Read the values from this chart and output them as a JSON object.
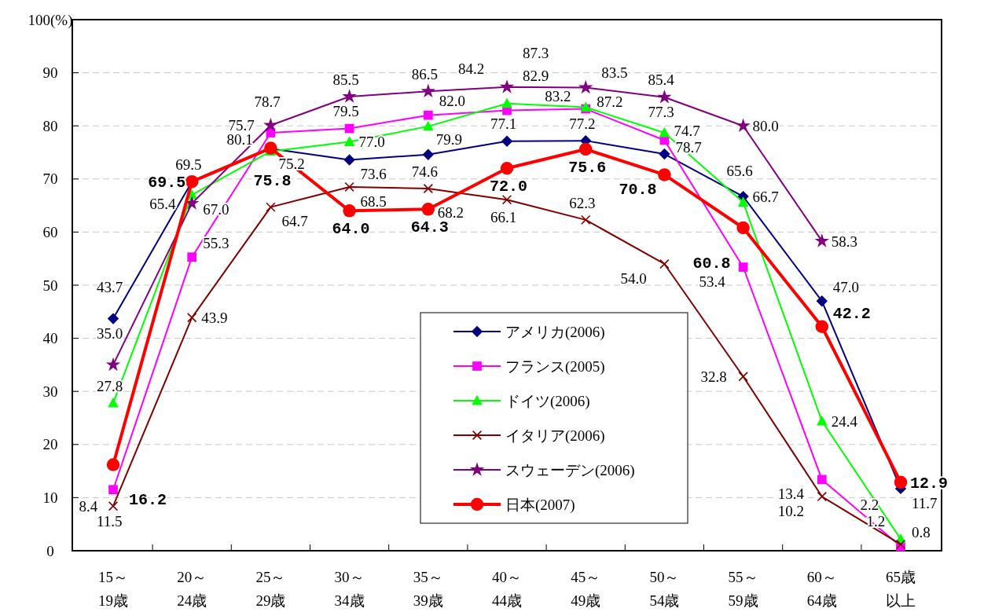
{
  "chart_data": {
    "type": "line",
    "categories": [
      "15～19歳",
      "20～24歳",
      "25～29歳",
      "30～34歳",
      "35～39歳",
      "40～44歳",
      "45～49歳",
      "50～54歳",
      "55～59歳",
      "60～64歳",
      "65歳以上"
    ],
    "ylim": [
      0,
      100
    ],
    "yticks": [
      0,
      10,
      20,
      30,
      40,
      50,
      60,
      70,
      80,
      90,
      {
        "value": 100,
        "label": "100(%)"
      }
    ],
    "grid": "y",
    "legend": "bottom",
    "series": [
      {
        "name": "アメリカ(2006)",
        "color": "#000080",
        "marker": "diamond",
        "values": [
          43.7,
          69.5,
          75.7,
          73.6,
          74.6,
          77.1,
          77.2,
          74.7,
          66.7,
          47.0,
          11.7
        ],
        "value_labels": [
          "43.7",
          "69.5",
          "75.7",
          "73.6",
          "74.6",
          "77.1",
          "77.2",
          "74.7",
          "66.7",
          "47.0",
          "11.7"
        ]
      },
      {
        "name": "フランス(2005)",
        "color": "#ff00ff",
        "marker": "square",
        "values": [
          11.5,
          55.3,
          78.7,
          79.5,
          82.0,
          82.9,
          83.2,
          77.3,
          53.4,
          13.4,
          0.8
        ],
        "value_labels": [
          "11.5",
          "55.3",
          "78.7",
          "79.5",
          "82.0",
          "82.9",
          "83.2",
          "77.3",
          "53.4",
          "13.4",
          "0.8"
        ]
      },
      {
        "name": "ドイツ(2006)",
        "color": "#00ff00",
        "marker": "triangle",
        "values": [
          27.8,
          67.0,
          75.2,
          77.0,
          79.9,
          84.2,
          83.5,
          78.7,
          65.6,
          24.4,
          2.2
        ],
        "value_labels": [
          "27.8",
          "67.0",
          "75.2",
          "77.0",
          "79.9",
          "84.2",
          "83.5",
          "78.7",
          "65.6",
          "24.4",
          "2.2"
        ]
      },
      {
        "name": "イタリア(2006)",
        "color": "#800000",
        "marker": "cross",
        "values": [
          8.4,
          43.9,
          64.7,
          68.5,
          68.2,
          66.1,
          62.3,
          54.0,
          32.8,
          10.2,
          1.2
        ],
        "value_labels": [
          "8.4",
          "43.9",
          "64.7",
          "68.5",
          "68.2",
          "66.1",
          "62.3",
          "54.0",
          "32.8",
          "10.2",
          "1.2"
        ]
      },
      {
        "name": "スウェーデン(2006)",
        "color": "#800080",
        "marker": "star",
        "values": [
          35.0,
          65.4,
          80.1,
          85.5,
          86.5,
          87.3,
          87.2,
          85.4,
          80.0,
          58.3,
          null
        ],
        "value_labels": [
          "35.0",
          "65.4",
          "80.1",
          "85.5",
          "86.5",
          "87.3",
          "87.2",
          "85.4",
          "80.0",
          "58.3",
          null
        ]
      },
      {
        "name": "日本(2007)",
        "color": "#ff0000",
        "marker": "circle",
        "values": [
          16.2,
          69.5,
          75.8,
          64.0,
          64.3,
          72.0,
          75.6,
          70.8,
          60.8,
          42.2,
          12.9
        ],
        "value_labels": [
          "16.2",
          "69.5",
          "75.8",
          "64.0",
          "64.3",
          "72.0",
          "75.6",
          "70.8",
          "60.8",
          "42.2",
          "12.9"
        ]
      }
    ]
  }
}
